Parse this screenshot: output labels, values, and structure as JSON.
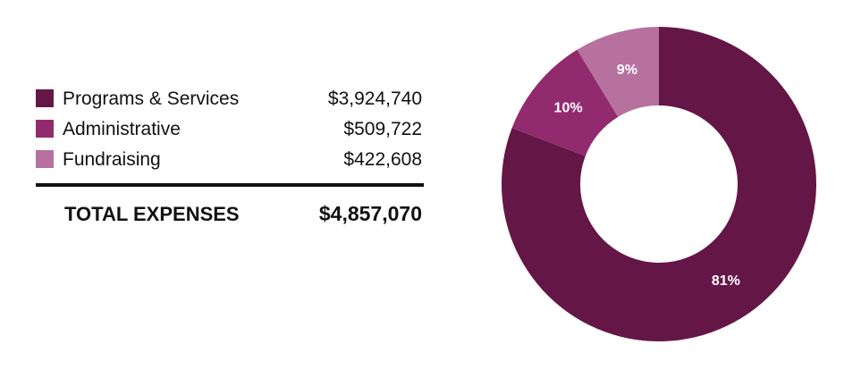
{
  "chart_data": {
    "type": "pie",
    "variant": "donut",
    "categories": [
      "Programs & Services",
      "Administrative",
      "Fundraising"
    ],
    "values": [
      3924740,
      509722,
      422608
    ],
    "value_labels": [
      "$3,924,740",
      "$509,722",
      "$422,608"
    ],
    "percent_labels": [
      "81%",
      "10%",
      "9%"
    ],
    "colors": [
      "#641646",
      "#922b6e",
      "#b6719f"
    ],
    "legend_position": "left",
    "total_label": "TOTAL EXPENSES",
    "total_value": "$4,857,070"
  }
}
